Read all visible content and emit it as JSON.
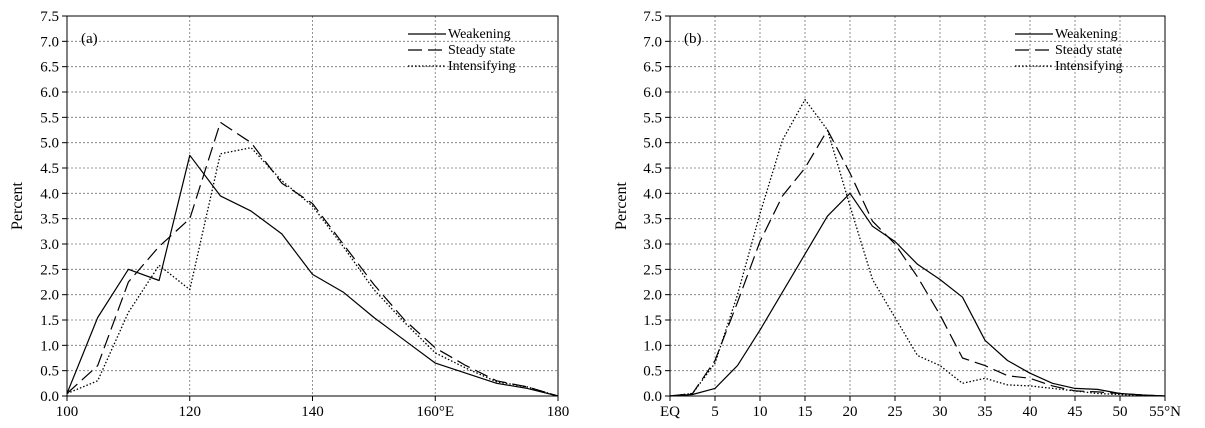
{
  "chart_data": [
    {
      "type": "line",
      "panel_label": "(a)",
      "xlabel": "",
      "ylabel": "Percent",
      "x_ticks": [
        100,
        120,
        140,
        160,
        180
      ],
      "x_tick_labels": [
        "100",
        "120",
        "140",
        "160°E",
        "180"
      ],
      "xlim": [
        100,
        180
      ],
      "ylim": [
        0,
        7.5
      ],
      "y_ticks": [
        0,
        0.5,
        1,
        1.5,
        2,
        2.5,
        3,
        3.5,
        4,
        4.5,
        5,
        5.5,
        6,
        6.5,
        7,
        7.5
      ],
      "y_tick_labels": [
        "0.0",
        "0.5",
        "1.0",
        "1.5",
        "2.0",
        "2.5",
        "3.0",
        "3.5",
        "4.0",
        "4.5",
        "5.0",
        "5.5",
        "6.0",
        "6.5",
        "7.0",
        "7.5"
      ],
      "grid": true,
      "legend_position": "top-right",
      "x": [
        100,
        105,
        110,
        115,
        120,
        125,
        130,
        135,
        140,
        145,
        150,
        155,
        160,
        165,
        170,
        175,
        180
      ],
      "series": [
        {
          "name": "Weakening",
          "style": "solid",
          "values": [
            0.05,
            1.55,
            2.5,
            2.28,
            4.75,
            3.95,
            3.65,
            3.2,
            2.4,
            2.05,
            1.55,
            1.1,
            0.65,
            0.45,
            0.25,
            0.15,
            0.0
          ]
        },
        {
          "name": "Steady state",
          "style": "dashed",
          "values": [
            0.05,
            0.6,
            2.25,
            2.95,
            3.5,
            5.4,
            5.0,
            4.2,
            3.8,
            3.0,
            2.2,
            1.5,
            0.95,
            0.6,
            0.3,
            0.18,
            0.0
          ]
        },
        {
          "name": "Intensifying",
          "style": "dotted",
          "values": [
            0.05,
            0.3,
            1.65,
            2.58,
            2.1,
            4.78,
            4.9,
            4.25,
            3.75,
            2.95,
            2.1,
            1.45,
            0.85,
            0.55,
            0.28,
            0.18,
            0.0
          ]
        }
      ]
    },
    {
      "type": "line",
      "panel_label": "(b)",
      "xlabel": "",
      "ylabel": "Percent",
      "x_ticks": [
        0,
        5,
        10,
        15,
        20,
        25,
        30,
        35,
        40,
        45,
        50,
        55
      ],
      "x_tick_labels": [
        "EQ",
        "5",
        "10",
        "15",
        "20",
        "25",
        "30",
        "35",
        "40",
        "45",
        "50",
        "55°N"
      ],
      "xlim": [
        0,
        55
      ],
      "ylim": [
        0,
        7.5
      ],
      "y_ticks": [
        0,
        0.5,
        1,
        1.5,
        2,
        2.5,
        3,
        3.5,
        4,
        4.5,
        5,
        5.5,
        6,
        6.5,
        7,
        7.5
      ],
      "y_tick_labels": [
        "0.0",
        "0.5",
        "1.0",
        "1.5",
        "2.0",
        "2.5",
        "3.0",
        "3.5",
        "4.0",
        "4.5",
        "5.0",
        "5.5",
        "6.0",
        "6.5",
        "7.0",
        "7.5"
      ],
      "grid": true,
      "legend_position": "top-right",
      "x": [
        0,
        2.5,
        5,
        7.5,
        10,
        12.5,
        15,
        17.5,
        20,
        22.5,
        25,
        27.5,
        30,
        32.5,
        35,
        37.5,
        40,
        42.5,
        45,
        47.5,
        50,
        52.5,
        55
      ],
      "series": [
        {
          "name": "Weakening",
          "style": "solid",
          "values": [
            0.0,
            0.03,
            0.15,
            0.6,
            1.3,
            2.05,
            2.8,
            3.55,
            4.0,
            3.35,
            3.05,
            2.6,
            2.3,
            1.95,
            1.1,
            0.7,
            0.45,
            0.25,
            0.15,
            0.13,
            0.05,
            0.02,
            0.0
          ]
        },
        {
          "name": "Steady state",
          "style": "dashed",
          "values": [
            0.0,
            0.05,
            0.7,
            1.85,
            3.05,
            3.95,
            4.5,
            5.25,
            4.4,
            3.45,
            3.0,
            2.35,
            1.6,
            0.75,
            0.6,
            0.4,
            0.35,
            0.2,
            0.1,
            0.08,
            0.05,
            0.02,
            0.0
          ]
        },
        {
          "name": "Intensifying",
          "style": "dotted",
          "values": [
            0.0,
            0.05,
            0.65,
            2.0,
            3.6,
            5.05,
            5.85,
            5.25,
            3.75,
            2.3,
            1.55,
            0.8,
            0.6,
            0.25,
            0.35,
            0.22,
            0.2,
            0.15,
            0.1,
            0.05,
            0.03,
            0.01,
            0.0
          ]
        }
      ]
    }
  ]
}
